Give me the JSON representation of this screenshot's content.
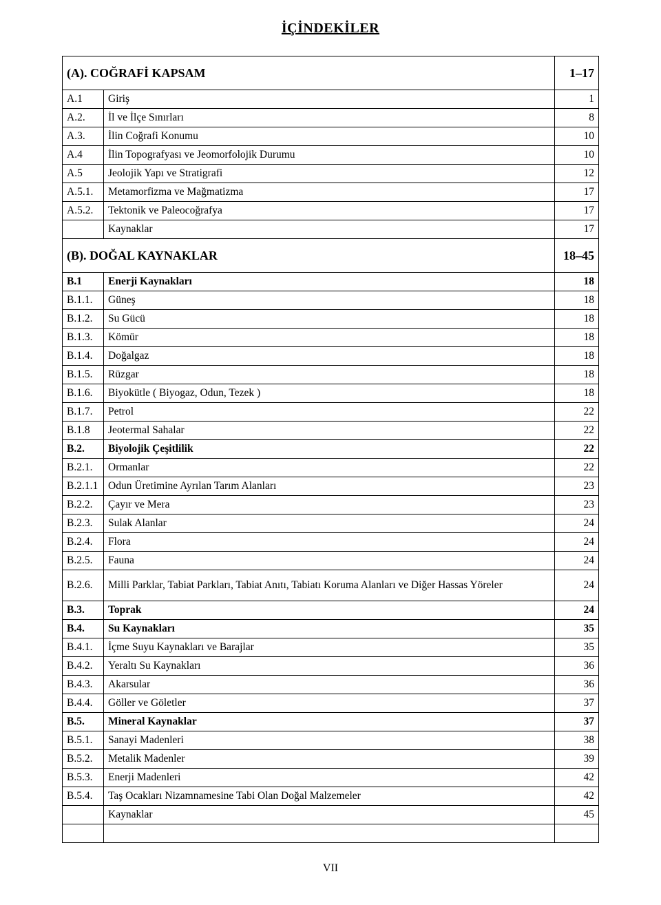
{
  "title": "İÇİNDEKİLER",
  "footer": "VII",
  "rows": [
    {
      "type": "section",
      "code": "(A).",
      "text": "COĞRAFİ KAPSAM",
      "page": "1–17"
    },
    {
      "code": "A.1",
      "text": "Giriş",
      "page": "1"
    },
    {
      "code": "A.2.",
      "text": "İl ve İlçe Sınırları",
      "page": "8"
    },
    {
      "code": "A.3.",
      "text": "İlin Coğrafi Konumu",
      "page": "10"
    },
    {
      "code": "A.4",
      "text": "İlin Topografyası ve Jeomorfolojik Durumu",
      "page": "10"
    },
    {
      "code": "A.5",
      "text": "Jeolojik Yapı ve Stratigrafi",
      "page": "12"
    },
    {
      "code": "A.5.1.",
      "text": "Metamorfizma ve Mağmatizma",
      "page": "17"
    },
    {
      "code": "A.5.2.",
      "text": "Tektonik ve Paleocoğrafya",
      "page": "17"
    },
    {
      "code": "",
      "text": "Kaynaklar",
      "page": "17"
    },
    {
      "type": "section",
      "code": "(B).",
      "text": "DOĞAL KAYNAKLAR",
      "page": "18–45"
    },
    {
      "type": "bold",
      "code": "B.1",
      "text": "Enerji Kaynakları",
      "page": "18"
    },
    {
      "code": "B.1.1.",
      "text": "Güneş",
      "page": "18"
    },
    {
      "code": "B.1.2.",
      "text": "Su Gücü",
      "page": "18"
    },
    {
      "code": "B.1.3.",
      "text": "Kömür",
      "page": "18"
    },
    {
      "code": "B.1.4.",
      "text": "Doğalgaz",
      "page": "18"
    },
    {
      "code": "B.1.5.",
      "text": "Rüzgar",
      "page": "18"
    },
    {
      "code": "B.1.6.",
      "text": "Biyokütle ( Biyogaz, Odun, Tezek )",
      "page": "18"
    },
    {
      "code": "B.1.7.",
      "text": "Petrol",
      "page": "22"
    },
    {
      "code": "B.1.8",
      "text": "Jeotermal Sahalar",
      "page": "22"
    },
    {
      "type": "bold",
      "code": "B.2.",
      "text": "Biyolojik Çeşitlilik",
      "page": "22"
    },
    {
      "code": "B.2.1.",
      "text": "Ormanlar",
      "page": "22"
    },
    {
      "code": "B.2.1.1",
      "text": "Odun Üretimine Ayrılan Tarım Alanları",
      "page": "23"
    },
    {
      "code": "B.2.2.",
      "text": "Çayır ve Mera",
      "page": "23"
    },
    {
      "code": "B.2.3.",
      "text": "Sulak Alanlar",
      "page": "24"
    },
    {
      "code": "B.2.4.",
      "text": "Flora",
      "page": "24"
    },
    {
      "code": "B.2.5.",
      "text": "Fauna",
      "page": "24"
    },
    {
      "code": "B.2.6.",
      "text": "Milli Parklar, Tabiat Parkları, Tabiat Anıtı, Tabiatı Koruma Alanları ve Diğer Hassas Yöreler",
      "page": "24",
      "multiline": true
    },
    {
      "type": "bold",
      "code": "B.3.",
      "text": "Toprak",
      "page": "24"
    },
    {
      "type": "bold",
      "code": "B.4.",
      "text": "Su Kaynakları",
      "page": "35"
    },
    {
      "code": "B.4.1.",
      "text": "İçme Suyu Kaynakları ve Barajlar",
      "page": "35"
    },
    {
      "code": "B.4.2.",
      "text": "Yeraltı Su Kaynakları",
      "page": "36"
    },
    {
      "code": "B.4.3.",
      "text": "Akarsular",
      "page": "36"
    },
    {
      "code": "B.4.4.",
      "text": "Göller ve Göletler",
      "page": "37"
    },
    {
      "type": "bold",
      "code": "B.5.",
      "text": "Mineral Kaynaklar",
      "page": "37"
    },
    {
      "code": "B.5.1.",
      "text": "Sanayi Madenleri",
      "page": "38"
    },
    {
      "code": "B.5.2.",
      "text": "Metalik Madenler",
      "page": "39"
    },
    {
      "code": "B.5.3.",
      "text": "Enerji Madenleri",
      "page": "42"
    },
    {
      "code": "B.5.4.",
      "text": "Taş Ocakları Nizamnamesine Tabi Olan Doğal Malzemeler",
      "page": "42"
    },
    {
      "code": "",
      "text": "Kaynaklar",
      "page": "45"
    },
    {
      "type": "empty"
    }
  ]
}
